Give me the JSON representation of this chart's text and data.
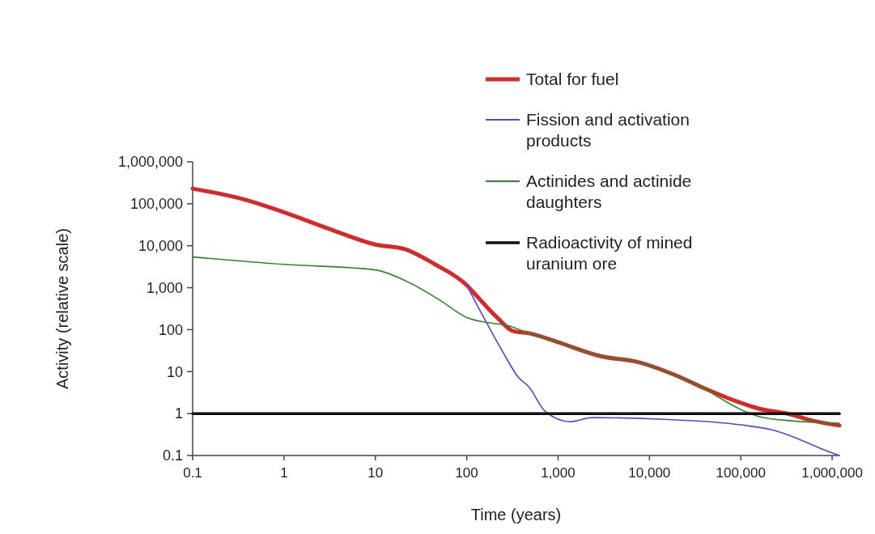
{
  "chart_data": {
    "type": "line",
    "xlabel": "Time (years)",
    "ylabel": "Activity (relative scale)",
    "log": "xy",
    "legend": "top right",
    "grid": false,
    "xlim": [
      0.1,
      1200000
    ],
    "ylim": [
      0.1,
      1000000
    ],
    "xticks": [
      0.1,
      1,
      10,
      100,
      {
        "value": 1000,
        "label": "1,000"
      },
      {
        "value": 10000,
        "label": "10,000"
      },
      {
        "value": 100000,
        "label": "100,000"
      },
      {
        "value": 1000000,
        "label": "1,000,000"
      }
    ],
    "yticks": [
      0.1,
      1,
      10,
      100,
      {
        "value": 1000,
        "label": "1,000"
      },
      {
        "value": 10000,
        "label": "10,000"
      },
      {
        "value": 100000,
        "label": "100,000"
      },
      {
        "value": 1000000,
        "label": "1,000,000"
      }
    ],
    "series": [
      {
        "name": "Total for fuel",
        "color": "#d62a2a",
        "x": [
          0.1,
          0.35,
          1,
          3.16,
          10,
          21,
          45,
          100,
          130,
          215,
          320,
          480,
          950,
          3000,
          7400,
          21000,
          41000,
          100000,
          160000,
          320000,
          620000,
          1200000
        ],
        "values": [
          230000,
          130000,
          63000,
          25000,
          10700,
          8300,
          3600,
          1150,
          620,
          195,
          93,
          82,
          52,
          23,
          17,
          7.6,
          3.9,
          1.8,
          1.3,
          1.0,
          0.67,
          0.52
        ]
      },
      {
        "name": "Fission and activation products",
        "color": "#4a4adb",
        "x": [
          100,
          160,
          245,
          370,
          480,
          720,
          1350,
          2350,
          14500,
          100000,
          220000,
          1000000,
          1200000
        ],
        "values": [
          1150,
          165,
          31,
          7.2,
          4.3,
          1.14,
          0.64,
          0.8,
          0.73,
          0.54,
          0.41,
          0.115,
          0.1
        ]
      },
      {
        "name": "Actinides and actinide daughters",
        "color": "#2a8a2a",
        "x": [
          0.1,
          1,
          10,
          22,
          51,
          100,
          160,
          280,
          480,
          950,
          3000,
          7400,
          21000,
          29000,
          58000,
          100000,
          160000,
          360000,
          1200000
        ],
        "values": [
          5400,
          3600,
          2650,
          1420,
          500,
          195,
          150,
          126,
          82,
          52,
          23,
          17,
          7.6,
          5.8,
          2.4,
          1.25,
          0.84,
          0.67,
          0.59
        ]
      },
      {
        "name": "Radioactivity of mined uranium ore",
        "color": "#111111",
        "x": [
          0.1,
          1200000
        ],
        "values": [
          1,
          1
        ]
      }
    ]
  }
}
